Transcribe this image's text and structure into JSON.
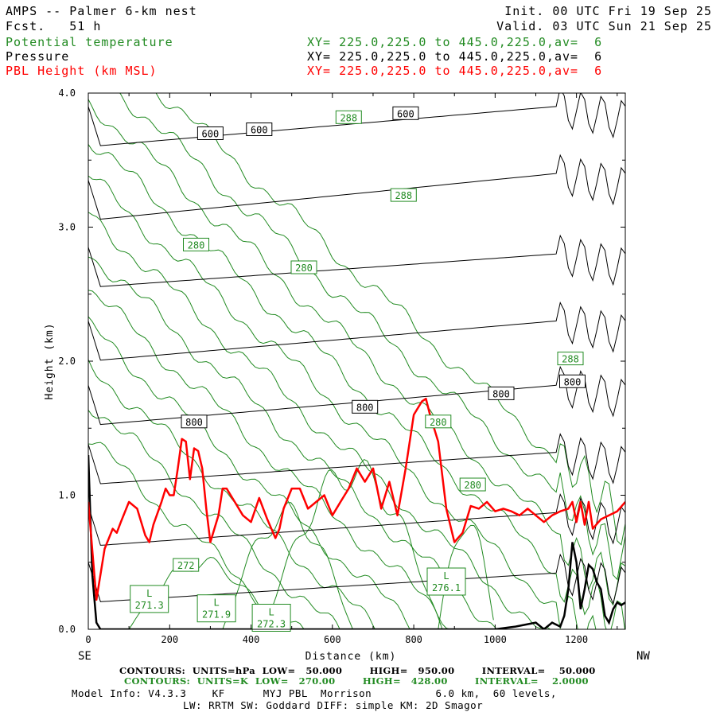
{
  "header": {
    "title": "AMPS -- Palmer 6-km nest",
    "fcst": "Fcst.   51 h",
    "init": "Init. 00 UTC Fri 19 Sep 25",
    "valid": "Valid. 03 UTC Sun 21 Sep 25",
    "fields": [
      {
        "name": "Potential temperature",
        "xy": "XY= 225.0,225.0 to 445.0,225.0,av=  6",
        "color": "#228B22"
      },
      {
        "name": "Pressure",
        "xy": "XY= 225.0,225.0 to 445.0,225.0,av=  6",
        "color": "#000000"
      },
      {
        "name": "PBL Height (km MSL)",
        "xy": "XY= 225.0,225.0 to 445.0,225.0,av=  6",
        "color": "#FF0000"
      }
    ]
  },
  "footer": {
    "contours_p": "CONTOURS:  UNITS=hPa  LOW=   50.000        HIGH=   950.00        INTERVAL=    50.000",
    "contours_t": "CONTOURS:  UNITS=K  LOW=   270.00        HIGH=   428.00        INTERVAL=    2.0000",
    "model_info": "Model Info: V4.3.3    KF      MYJ PBL  Morrison          6.0 km,  60 levels,",
    "model_info2": "LW: RRTM SW: Goddard DIFF: simple KM: 2D Smagor"
  },
  "chart_data": {
    "type": "line",
    "xlabel": "Distance (km)",
    "ylabel": "Height (km)",
    "x_end_labels": {
      "left": "SE",
      "right": "NW"
    },
    "xlim": [
      0,
      1320
    ],
    "ylim": [
      0,
      4.0
    ],
    "x_ticks": [
      "0",
      "200",
      "400",
      "600",
      "800",
      "1000",
      "1200"
    ],
    "y_ticks": [
      "0.0",
      "1.0",
      "2.0",
      "3.0",
      "4.0"
    ],
    "colors": {
      "pbl": "#FF0000",
      "theta": "#228B22",
      "pressure": "#000000",
      "terrain": "#000000"
    },
    "series": [
      {
        "name": "PBL Height (km MSL)",
        "x": [
          0,
          20,
          40,
          60,
          70,
          80,
          100,
          120,
          140,
          150,
          160,
          180,
          190,
          200,
          210,
          220,
          230,
          240,
          250,
          260,
          270,
          280,
          290,
          300,
          310,
          320,
          330,
          340,
          350,
          360,
          380,
          400,
          420,
          440,
          460,
          470,
          480,
          500,
          520,
          540,
          560,
          580,
          600,
          620,
          640,
          660,
          680,
          700,
          720,
          740,
          760,
          780,
          800,
          820,
          830,
          840,
          860,
          880,
          900,
          920,
          940,
          960,
          980,
          1000,
          1020,
          1040,
          1060,
          1080,
          1100,
          1120,
          1140,
          1160,
          1180,
          1190,
          1200,
          1210,
          1220,
          1230,
          1240,
          1260,
          1280,
          1300,
          1320
        ],
        "y": [
          0.95,
          0.22,
          0.6,
          0.75,
          0.72,
          0.8,
          0.95,
          0.9,
          0.7,
          0.65,
          0.78,
          0.95,
          1.05,
          1.0,
          1.0,
          1.2,
          1.42,
          1.4,
          1.12,
          1.35,
          1.33,
          1.2,
          0.9,
          0.65,
          0.75,
          0.85,
          1.05,
          1.05,
          1.0,
          0.95,
          0.85,
          0.8,
          0.98,
          0.82,
          0.68,
          0.75,
          0.9,
          1.05,
          1.05,
          0.9,
          0.95,
          1.0,
          0.85,
          0.95,
          1.05,
          1.2,
          1.1,
          1.2,
          0.9,
          1.1,
          0.85,
          1.2,
          1.6,
          1.7,
          1.72,
          1.6,
          1.4,
          0.9,
          0.65,
          0.72,
          0.92,
          0.9,
          0.95,
          0.88,
          0.9,
          0.88,
          0.85,
          0.9,
          0.85,
          0.8,
          0.85,
          0.88,
          0.9,
          0.95,
          0.8,
          0.95,
          0.78,
          0.95,
          0.75,
          0.82,
          0.85,
          0.88,
          0.95
        ]
      },
      {
        "name": "Terrain",
        "x": [
          0,
          10,
          20,
          30,
          40,
          600,
          700,
          900,
          1000,
          1050,
          1100,
          1120,
          1140,
          1160,
          1170,
          1180,
          1190,
          1200,
          1210,
          1220,
          1230,
          1240,
          1250,
          1260,
          1270,
          1280,
          1290,
          1300,
          1310,
          1320
        ],
        "y": [
          1.3,
          0.4,
          0.05,
          0.0,
          0.0,
          0.0,
          0.0,
          0.0,
          0.0,
          0.02,
          0.05,
          0.0,
          0.05,
          0.02,
          0.1,
          0.3,
          0.65,
          0.5,
          0.15,
          0.3,
          0.48,
          0.45,
          0.35,
          0.3,
          0.1,
          0.05,
          0.15,
          0.2,
          0.18,
          0.2
        ]
      }
    ],
    "pressure_contours": [
      {
        "label": "600",
        "y0": 3.6,
        "y1": 3.9
      },
      {
        "label": "",
        "y0": 3.05,
        "y1": 3.4
      },
      {
        "label": "",
        "y0": 2.55,
        "y1": 2.8
      },
      {
        "label": "",
        "y0": 2.0,
        "y1": 2.3
      },
      {
        "label": "800",
        "y0": 1.52,
        "y1": 1.82
      },
      {
        "label": "",
        "y0": 1.08,
        "y1": 1.32
      },
      {
        "label": "",
        "y0": 0.62,
        "y1": 0.87
      },
      {
        "label": "",
        "y0": 0.2,
        "y1": 0.42
      }
    ],
    "pressure_labels": [
      {
        "text": "600",
        "x": 300,
        "y": 3.7
      },
      {
        "text": "600",
        "x": 420,
        "y": 3.73
      },
      {
        "text": "600",
        "x": 780,
        "y": 3.85
      },
      {
        "text": "800",
        "x": 260,
        "y": 1.55
      },
      {
        "text": "800",
        "x": 680,
        "y": 1.66
      },
      {
        "text": "800",
        "x": 1015,
        "y": 1.76
      },
      {
        "text": "800",
        "x": 1190,
        "y": 1.85
      }
    ],
    "theta_labels": [
      {
        "text": "288",
        "x": 640,
        "y": 3.82
      },
      {
        "text": "288",
        "x": 775,
        "y": 3.24
      },
      {
        "text": "280",
        "x": 265,
        "y": 2.87
      },
      {
        "text": "280",
        "x": 530,
        "y": 2.7
      },
      {
        "text": "288",
        "x": 1185,
        "y": 2.02
      },
      {
        "text": "280",
        "x": 860,
        "y": 1.55
      },
      {
        "text": "280",
        "x": 945,
        "y": 1.08
      },
      {
        "text": "272",
        "x": 240,
        "y": 0.48
      }
    ],
    "lows": [
      {
        "text": "271.3",
        "x": 150,
        "y": 0.22
      },
      {
        "text": "271.9",
        "x": 315,
        "y": 0.15
      },
      {
        "text": "272.3",
        "x": 450,
        "y": 0.08
      },
      {
        "text": "276.1",
        "x": 880,
        "y": 0.35
      }
    ]
  }
}
